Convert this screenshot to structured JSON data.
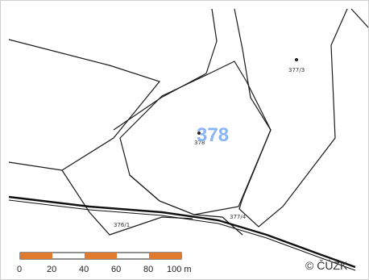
{
  "map": {
    "main_parcel_label": "378",
    "parcel_labels": [
      "377/3",
      "378",
      "377/4",
      "376/1"
    ],
    "colors": {
      "main_label": "#8ab4f8",
      "scale_orange": "#e07a2e",
      "lines": "#1a1a1a"
    }
  },
  "scale_bar": {
    "ticks": [
      "0",
      "20",
      "40",
      "60",
      "80",
      "100 m"
    ]
  },
  "attribution": "© ČÚZK"
}
